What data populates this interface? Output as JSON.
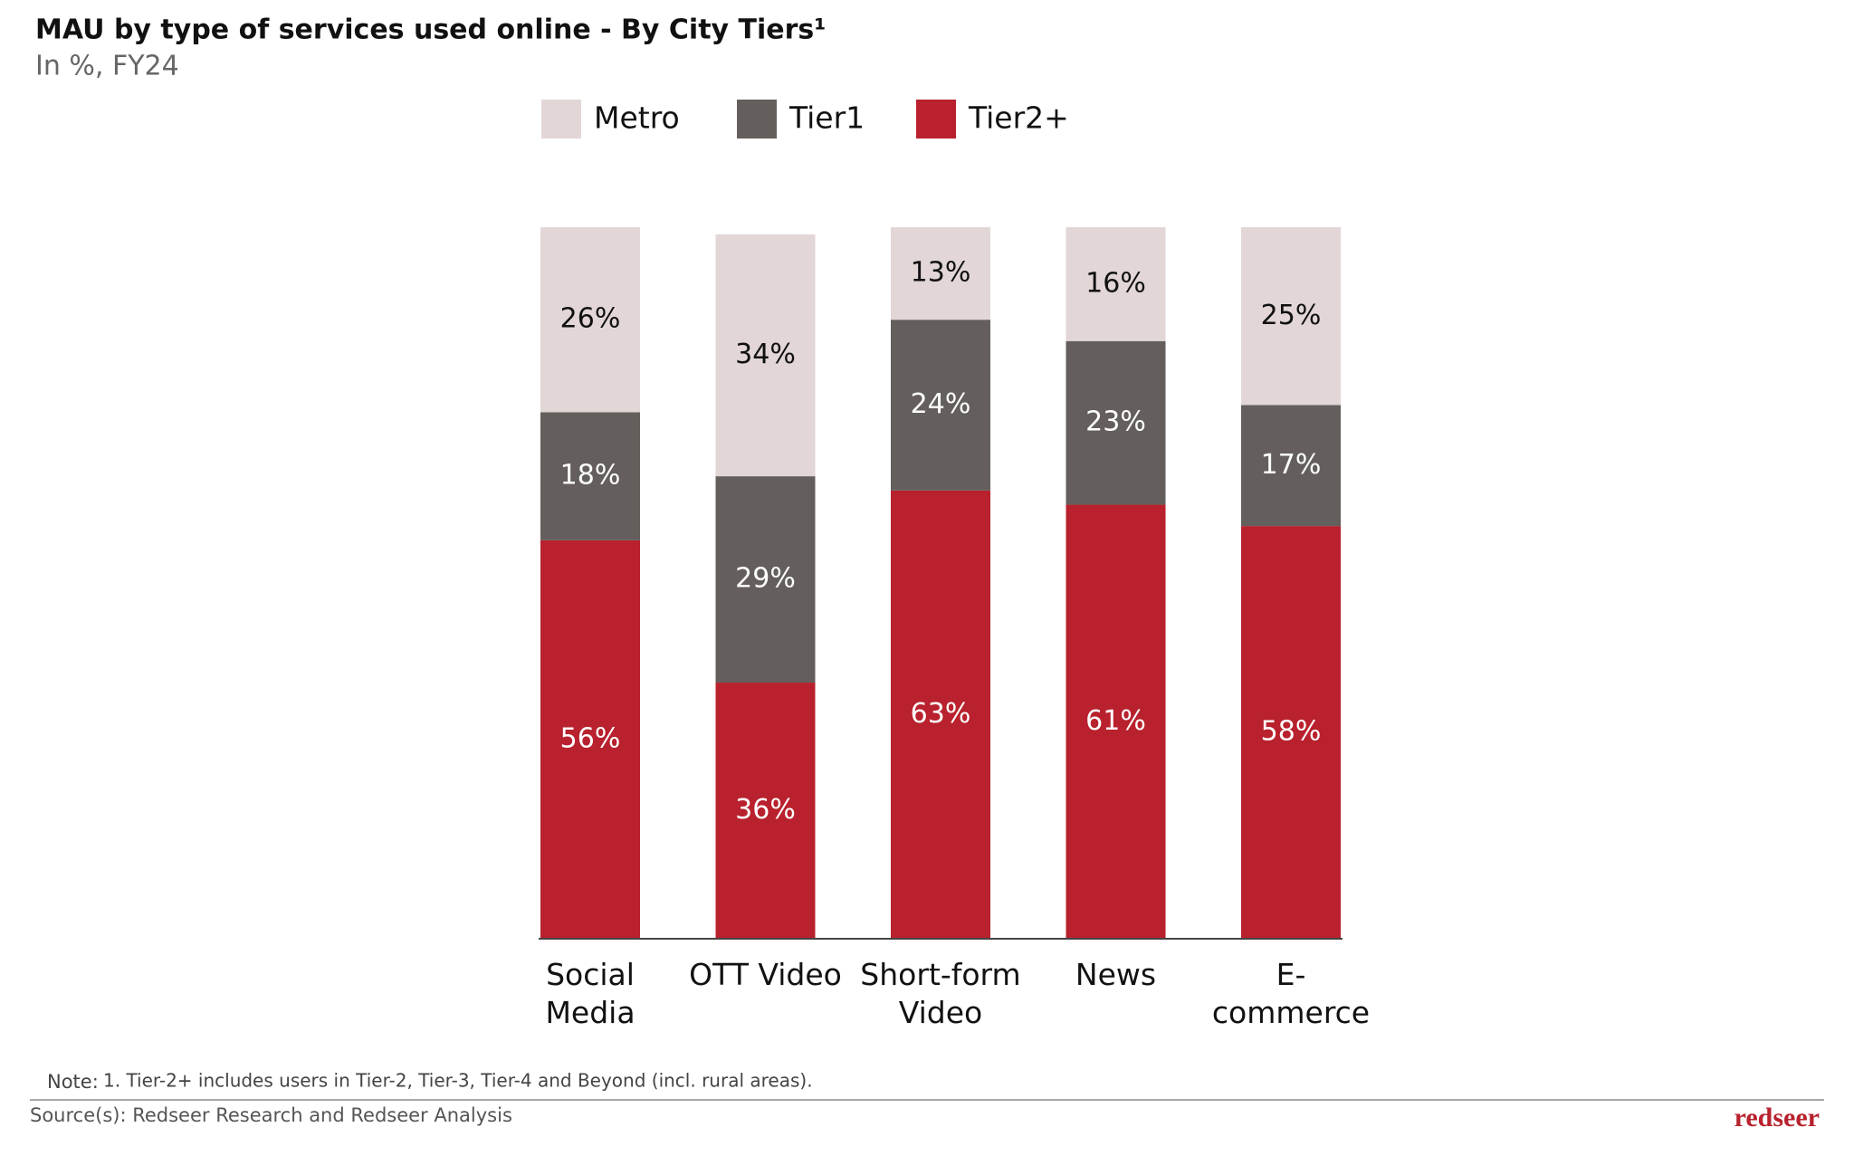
{
  "chart_data": {
    "type": "stacked_bar",
    "title": "MAU by type of services used online - By City Tiers¹",
    "subtitle": "In %, FY24",
    "categories": [
      "Social\nMedia",
      "OTT Video",
      "Short-form\nVideo",
      "News",
      "E-commerce"
    ],
    "ylim": [
      0,
      100
    ],
    "series": [
      {
        "name": "Tier2+",
        "color": "#b8212d",
        "values": [
          56,
          36,
          63,
          61,
          58
        ],
        "value_labels": [
          "56%",
          "36%",
          "63%",
          "61%",
          "58%"
        ]
      },
      {
        "name": "Tier1",
        "color": "#645f5c",
        "values": [
          18,
          29,
          24,
          23,
          17
        ],
        "value_labels": [
          "18%",
          "29%",
          "24%",
          "23%",
          "17%"
        ]
      },
      {
        "name": "Metro",
        "color": "#e2d6d7",
        "values": [
          26,
          34,
          13,
          16,
          25
        ],
        "value_labels": [
          "26%",
          "34%",
          "13%",
          "16%",
          "25%"
        ]
      }
    ],
    "note_label": "Note:",
    "note": "1. Tier-2+ includes users in Tier-2, Tier-3, Tier-4 and Beyond (incl. rural areas).",
    "source": "Source(s): Redseer Research and Redseer Analysis",
    "brand": "redseer"
  }
}
